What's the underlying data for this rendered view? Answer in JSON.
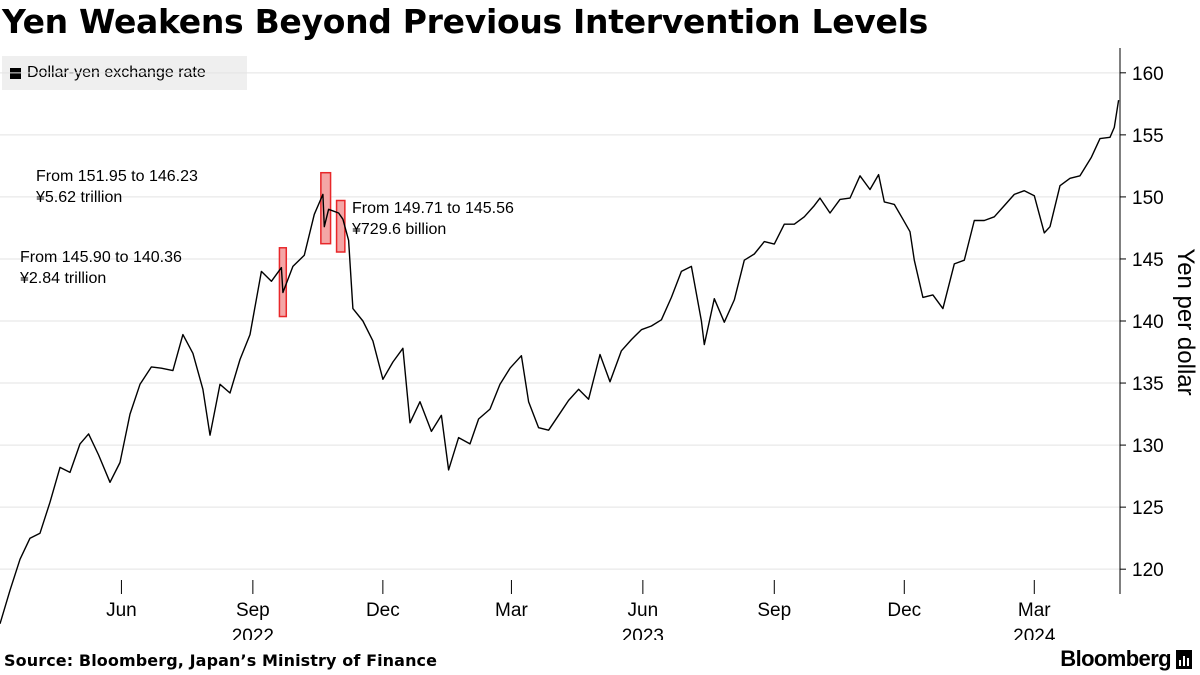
{
  "title": "Yen Weakens Beyond Previous Intervention Levels",
  "legend": {
    "label": "Dollar-yen exchange rate"
  },
  "footer": {
    "source": "Source: Bloomberg, Japan’s Ministry of Finance",
    "brand": "Bloomberg"
  },
  "chart_data": {
    "type": "line",
    "title": "Yen Weakens Beyond Previous Intervention Levels",
    "ylabel": "Yen per dollar",
    "xlabel": "",
    "ylim": [
      118,
      162
    ],
    "xlim": [
      "2022-03-08",
      "2024-04-30"
    ],
    "yticks": [
      120,
      125,
      130,
      135,
      140,
      145,
      150,
      155,
      160
    ],
    "xticks": [
      {
        "date": "2022-06-01",
        "label": "Jun"
      },
      {
        "date": "2022-09-01",
        "label": "Sep"
      },
      {
        "date": "2022-12-01",
        "label": "Dec"
      },
      {
        "date": "2023-03-01",
        "label": "Mar"
      },
      {
        "date": "2023-06-01",
        "label": "Jun"
      },
      {
        "date": "2023-09-01",
        "label": "Sep"
      },
      {
        "date": "2023-12-01",
        "label": "Dec"
      },
      {
        "date": "2024-03-01",
        "label": "Mar"
      }
    ],
    "year_labels": [
      {
        "date": "2022-09-01",
        "label": "2022"
      },
      {
        "date": "2023-06-01",
        "label": "2023"
      },
      {
        "date": "2024-03-01",
        "label": "2024"
      }
    ],
    "grid": true,
    "legend_position": "top-left",
    "line_color": "#000000",
    "highlight_color": "#e8272a",
    "series": [
      {
        "name": "Dollar-yen exchange rate",
        "points": [
          [
            "2022-03-08",
            115.6
          ],
          [
            "2022-03-15",
            118.3
          ],
          [
            "2022-03-22",
            120.8
          ],
          [
            "2022-03-29",
            122.5
          ],
          [
            "2022-04-05",
            122.9
          ],
          [
            "2022-04-12",
            125.4
          ],
          [
            "2022-04-19",
            128.2
          ],
          [
            "2022-04-26",
            127.8
          ],
          [
            "2022-05-03",
            130.1
          ],
          [
            "2022-05-09",
            130.9
          ],
          [
            "2022-05-16",
            129.2
          ],
          [
            "2022-05-24",
            127.0
          ],
          [
            "2022-05-31",
            128.6
          ],
          [
            "2022-06-07",
            132.5
          ],
          [
            "2022-06-14",
            134.9
          ],
          [
            "2022-06-22",
            136.3
          ],
          [
            "2022-06-29",
            136.2
          ],
          [
            "2022-07-07",
            136.0
          ],
          [
            "2022-07-14",
            138.9
          ],
          [
            "2022-07-21",
            137.4
          ],
          [
            "2022-07-28",
            134.5
          ],
          [
            "2022-08-02",
            130.8
          ],
          [
            "2022-08-09",
            134.9
          ],
          [
            "2022-08-16",
            134.2
          ],
          [
            "2022-08-23",
            136.9
          ],
          [
            "2022-08-30",
            138.9
          ],
          [
            "2022-09-07",
            144.0
          ],
          [
            "2022-09-14",
            143.2
          ],
          [
            "2022-09-21",
            144.3
          ],
          [
            "2022-09-22",
            142.3
          ],
          [
            "2022-09-29",
            144.4
          ],
          [
            "2022-10-07",
            145.3
          ],
          [
            "2022-10-14",
            148.6
          ],
          [
            "2022-10-20",
            150.2
          ],
          [
            "2022-10-21",
            147.6
          ],
          [
            "2022-10-24",
            149.0
          ],
          [
            "2022-10-31",
            148.7
          ],
          [
            "2022-11-03",
            148.2
          ],
          [
            "2022-11-07",
            146.5
          ],
          [
            "2022-11-10",
            141.0
          ],
          [
            "2022-11-17",
            140.0
          ],
          [
            "2022-11-24",
            138.4
          ],
          [
            "2022-12-01",
            135.3
          ],
          [
            "2022-12-08",
            136.7
          ],
          [
            "2022-12-15",
            137.8
          ],
          [
            "2022-12-20",
            131.8
          ],
          [
            "2022-12-27",
            133.5
          ],
          [
            "2023-01-04",
            131.1
          ],
          [
            "2023-01-11",
            132.4
          ],
          [
            "2023-01-16",
            128.0
          ],
          [
            "2023-01-23",
            130.6
          ],
          [
            "2023-01-31",
            130.1
          ],
          [
            "2023-02-06",
            132.1
          ],
          [
            "2023-02-14",
            132.9
          ],
          [
            "2023-02-21",
            134.9
          ],
          [
            "2023-02-28",
            136.2
          ],
          [
            "2023-03-08",
            137.2
          ],
          [
            "2023-03-13",
            133.5
          ],
          [
            "2023-03-20",
            131.4
          ],
          [
            "2023-03-27",
            131.2
          ],
          [
            "2023-04-03",
            132.4
          ],
          [
            "2023-04-10",
            133.6
          ],
          [
            "2023-04-17",
            134.5
          ],
          [
            "2023-04-24",
            133.7
          ],
          [
            "2023-05-02",
            137.3
          ],
          [
            "2023-05-09",
            135.1
          ],
          [
            "2023-05-17",
            137.6
          ],
          [
            "2023-05-24",
            138.5
          ],
          [
            "2023-05-31",
            139.3
          ],
          [
            "2023-06-07",
            139.6
          ],
          [
            "2023-06-14",
            140.1
          ],
          [
            "2023-06-21",
            141.9
          ],
          [
            "2023-06-28",
            144.0
          ],
          [
            "2023-07-05",
            144.4
          ],
          [
            "2023-07-12",
            140.0
          ],
          [
            "2023-07-14",
            138.1
          ],
          [
            "2023-07-21",
            141.8
          ],
          [
            "2023-07-28",
            139.9
          ],
          [
            "2023-08-04",
            141.7
          ],
          [
            "2023-08-11",
            144.9
          ],
          [
            "2023-08-18",
            145.4
          ],
          [
            "2023-08-25",
            146.4
          ],
          [
            "2023-09-01",
            146.2
          ],
          [
            "2023-09-08",
            147.8
          ],
          [
            "2023-09-15",
            147.8
          ],
          [
            "2023-09-22",
            148.4
          ],
          [
            "2023-09-29",
            149.3
          ],
          [
            "2023-10-03",
            149.9
          ],
          [
            "2023-10-10",
            148.7
          ],
          [
            "2023-10-17",
            149.8
          ],
          [
            "2023-10-24",
            149.9
          ],
          [
            "2023-10-31",
            151.7
          ],
          [
            "2023-11-07",
            150.6
          ],
          [
            "2023-11-13",
            151.8
          ],
          [
            "2023-11-17",
            149.6
          ],
          [
            "2023-11-24",
            149.4
          ],
          [
            "2023-11-30",
            148.2
          ],
          [
            "2023-12-05",
            147.2
          ],
          [
            "2023-12-08",
            144.9
          ],
          [
            "2023-12-14",
            141.9
          ],
          [
            "2023-12-21",
            142.1
          ],
          [
            "2023-12-28",
            141.0
          ],
          [
            "2024-01-05",
            144.6
          ],
          [
            "2024-01-12",
            144.9
          ],
          [
            "2024-01-19",
            148.1
          ],
          [
            "2024-01-26",
            148.1
          ],
          [
            "2024-02-02",
            148.4
          ],
          [
            "2024-02-09",
            149.3
          ],
          [
            "2024-02-16",
            150.2
          ],
          [
            "2024-02-23",
            150.5
          ],
          [
            "2024-03-01",
            150.1
          ],
          [
            "2024-03-08",
            147.1
          ],
          [
            "2024-03-12",
            147.6
          ],
          [
            "2024-03-19",
            150.9
          ],
          [
            "2024-03-26",
            151.5
          ],
          [
            "2024-04-02",
            151.7
          ],
          [
            "2024-04-10",
            153.2
          ],
          [
            "2024-04-16",
            154.7
          ],
          [
            "2024-04-23",
            154.8
          ],
          [
            "2024-04-26",
            155.6
          ],
          [
            "2024-04-29",
            157.8
          ]
        ]
      }
    ],
    "interventions": [
      {
        "date_start": "2022-09-21",
        "date_end": "2022-09-23",
        "high": 145.9,
        "low": 140.36,
        "line1": "From 145.90 to 140.36",
        "line2": "¥2.84 trillion"
      },
      {
        "date_start": "2022-10-20",
        "date_end": "2022-10-24",
        "high": 151.95,
        "low": 146.23,
        "line1": "From 151.95 to 146.23",
        "line2": "¥5.62 trillion"
      },
      {
        "date_start": "2022-10-31",
        "date_end": "2022-11-03",
        "high": 149.71,
        "low": 145.56,
        "line1": "From 149.71 to 145.56",
        "line2": "¥729.6 billion"
      }
    ]
  }
}
